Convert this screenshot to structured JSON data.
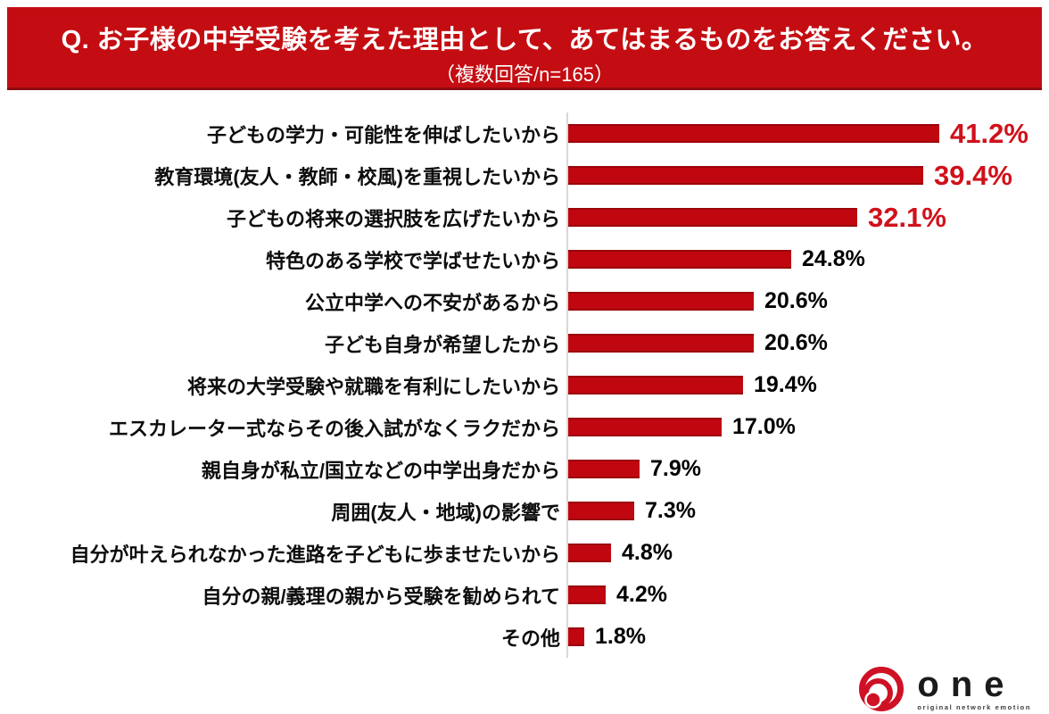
{
  "chart_data": {
    "type": "bar",
    "orientation": "horizontal",
    "title": "Q. お子様の中学受験を考えた理由として、あてはまるものをお答えください。",
    "subtitle": "（複数回答/n=165）",
    "sample_size": 165,
    "categories": [
      "子どもの学力・可能性を伸ばしたいから",
      "教育環境(友人・教師・校風)を重視したいから",
      "子どもの将来の選択肢を広げたいから",
      "特色のある学校で学ばせたいから",
      "公立中学への不安があるから",
      "子ども自身が希望したから",
      "将来の大学受験や就職を有利にしたいから",
      "エスカレーター式ならその後入試がなくラクだから",
      "親自身が私立/国立などの中学出身だから",
      "周囲(友人・地域)の影響で",
      "自分が叶えられなかった進路を子どもに歩ませたいから",
      "自分の親/義理の親から受験を勧められて",
      "その他"
    ],
    "values": [
      41.2,
      39.4,
      32.1,
      24.8,
      20.6,
      20.6,
      19.4,
      17.0,
      7.9,
      7.3,
      4.8,
      4.2,
      1.8
    ],
    "value_labels": [
      "41.2%",
      "39.4%",
      "32.1%",
      "24.8%",
      "20.6%",
      "20.6%",
      "19.4%",
      "17.0%",
      "7.9%",
      "7.3%",
      "4.8%",
      "4.2%",
      "1.8%"
    ],
    "highlight_top_n": 3,
    "xlim": [
      0,
      45
    ],
    "grid": false,
    "legend": "none"
  },
  "colors": {
    "banner_bg": "#C40D12",
    "banner_border": "#8E0B10",
    "bar": "#C00710",
    "highlight_value": "#D0111B",
    "value_text": "#000000",
    "axis_line": "#D8D8D8",
    "logo_red": "#CF1126"
  },
  "footer": {
    "logo_text": "one",
    "logo_tagline": "original network emotion"
  }
}
